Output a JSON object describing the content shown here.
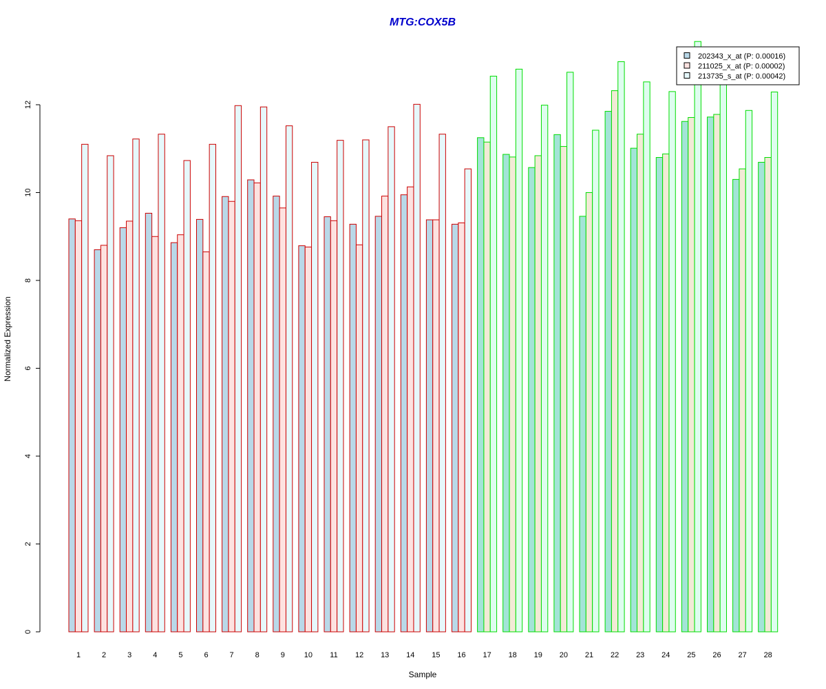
{
  "chart_data": {
    "type": "bar",
    "title": "MTG:COX5B",
    "xlabel": "Sample",
    "ylabel": "Normalized Expression",
    "ylim": [
      0,
      13.5
    ],
    "yticks": [
      0,
      2,
      4,
      6,
      8,
      10,
      12
    ],
    "categories": [
      "1",
      "2",
      "3",
      "4",
      "5",
      "6",
      "7",
      "8",
      "9",
      "10",
      "11",
      "12",
      "13",
      "14",
      "15",
      "16",
      "17",
      "18",
      "19",
      "20",
      "21",
      "22",
      "23",
      "24",
      "25",
      "26",
      "27",
      "28"
    ],
    "group_border_colors": {
      "samples_1_16": "#cc0000",
      "samples_17_28": "#00dd00"
    },
    "group_split_after": 16,
    "legend_position": "top-right",
    "series": [
      {
        "name": "202343_x_at (P: 0.00016)",
        "group1_fill": "#b9d8e8",
        "group2_fill": "#a3e4d7",
        "values": [
          9.4,
          8.7,
          9.2,
          9.53,
          8.86,
          9.39,
          9.91,
          10.29,
          9.92,
          8.79,
          9.45,
          9.28,
          9.46,
          9.95,
          9.38,
          9.28,
          11.25,
          10.87,
          10.57,
          11.32,
          9.46,
          11.85,
          11.01,
          10.8,
          11.62,
          11.72,
          10.3,
          10.69
        ]
      },
      {
        "name": "211025_x_at (P: 0.00002)",
        "group1_fill": "#fde2e0",
        "group2_fill": "#f2ead6",
        "values": [
          9.36,
          8.8,
          9.35,
          9.0,
          9.04,
          8.65,
          9.8,
          10.22,
          9.65,
          8.76,
          9.36,
          8.81,
          9.92,
          10.13,
          9.38,
          9.31,
          11.15,
          10.81,
          10.84,
          11.05,
          10.0,
          12.32,
          11.33,
          10.88,
          11.71,
          11.78,
          10.54,
          10.8
        ]
      },
      {
        "name": "213735_s_at (P: 0.00042)",
        "group1_fill": "#e6f8fb",
        "group2_fill": "#defdef",
        "values": [
          11.1,
          10.84,
          11.22,
          11.33,
          10.73,
          11.1,
          11.98,
          11.95,
          11.52,
          10.69,
          11.19,
          11.2,
          11.5,
          12.01,
          11.33,
          10.54,
          12.65,
          12.81,
          11.99,
          12.74,
          11.42,
          12.98,
          12.52,
          12.3,
          13.44,
          12.55,
          11.87,
          12.29
        ]
      }
    ]
  }
}
